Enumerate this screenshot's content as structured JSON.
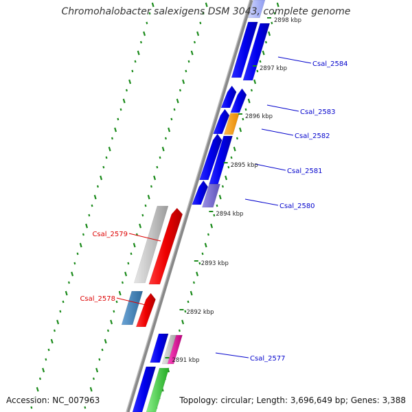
{
  "header": {
    "title": "Chromohalobacter salexigens DSM 3043, complete genome"
  },
  "footer": {
    "accession": "Accession: NC_007963",
    "summary": "Topology: circular; Length: 3,696,649 bp; Genes: 3,388"
  },
  "scale": {
    "unit": "kbp",
    "ticks": [
      "2898 kbp",
      "2897 kbp",
      "2896 kbp",
      "2895 kbp",
      "2894 kbp",
      "2893 kbp",
      "2892 kbp",
      "2891 kbp"
    ]
  },
  "gene_labels": [
    {
      "name": "Csal_2584",
      "strand": "forward"
    },
    {
      "name": "Csal_2583",
      "strand": "forward"
    },
    {
      "name": "Csal_2582",
      "strand": "forward"
    },
    {
      "name": "Csal_2581",
      "strand": "forward"
    },
    {
      "name": "Csal_2580",
      "strand": "forward"
    },
    {
      "name": "Csal_2579",
      "strand": "reverse"
    },
    {
      "name": "Csal_2578",
      "strand": "reverse"
    },
    {
      "name": "Csal_2577",
      "strand": "forward"
    }
  ],
  "colors": {
    "forward_label": "#0000cc",
    "reverse_label": "#dd0000",
    "backbone": "#888888",
    "tick_mark": "#1a8a1a",
    "cds_blue": "#0000ee",
    "cds_red": "#ee0000",
    "cds_orange": "#ff9900",
    "cds_purple": "#7b6fd0",
    "cds_grey": "#bdbdbd",
    "cds_steelblue": "#3f7fb6",
    "cds_magenta": "#e0109a",
    "cds_green": "#44cc44"
  }
}
